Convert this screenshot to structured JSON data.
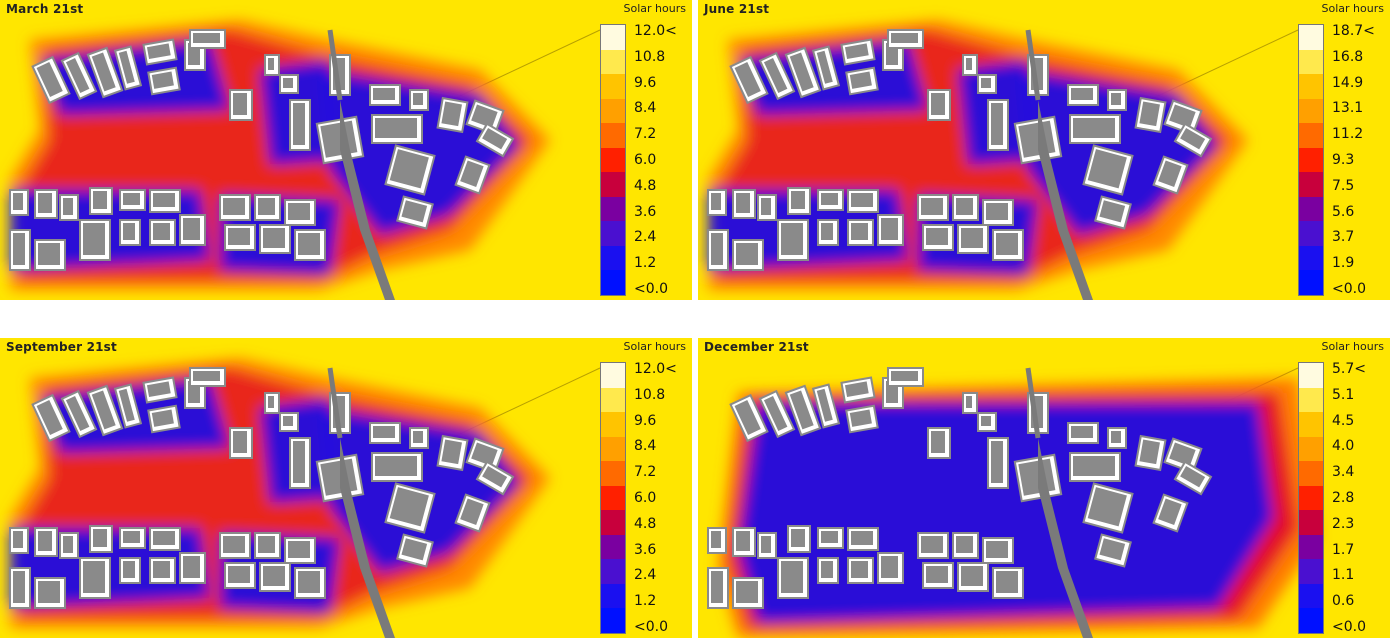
{
  "legend_title": "Solar hours",
  "panels": [
    {
      "title": "March 21st",
      "ticks": [
        "12.0<",
        "10.8",
        "9.6",
        "8.4",
        "7.2",
        "6.0",
        "4.8",
        "3.6",
        "2.4",
        "1.2",
        "<0.0"
      ],
      "variant": "normal"
    },
    {
      "title": "June 21st",
      "ticks": [
        "18.7<",
        "16.8",
        "14.9",
        "13.1",
        "11.2",
        "9.3",
        "7.5",
        "5.6",
        "3.7",
        "1.9",
        "<0.0"
      ],
      "variant": "normal"
    },
    {
      "title": "September 21st",
      "ticks": [
        "12.0<",
        "10.8",
        "9.6",
        "8.4",
        "7.2",
        "6.0",
        "4.8",
        "3.6",
        "2.4",
        "1.2",
        "<0.0"
      ],
      "variant": "normal"
    },
    {
      "title": "December 21st",
      "ticks": [
        "5.7<",
        "5.1",
        "4.5",
        "4.0",
        "3.4",
        "2.8",
        "2.3",
        "1.7",
        "1.1",
        "0.6",
        "<0.0"
      ],
      "variant": "winter"
    }
  ],
  "colors": {
    "scale": [
      "#fffbe0",
      "#ffe94d",
      "#ffc400",
      "#ffa000",
      "#ff6a00",
      "#ff2000",
      "#c8003c",
      "#7a00a0",
      "#4a10d0",
      "#1a10f0",
      "#0010ff"
    ],
    "building": "#8a8a8a",
    "rail": "#7a7a7a",
    "field": "#ffe600"
  }
}
